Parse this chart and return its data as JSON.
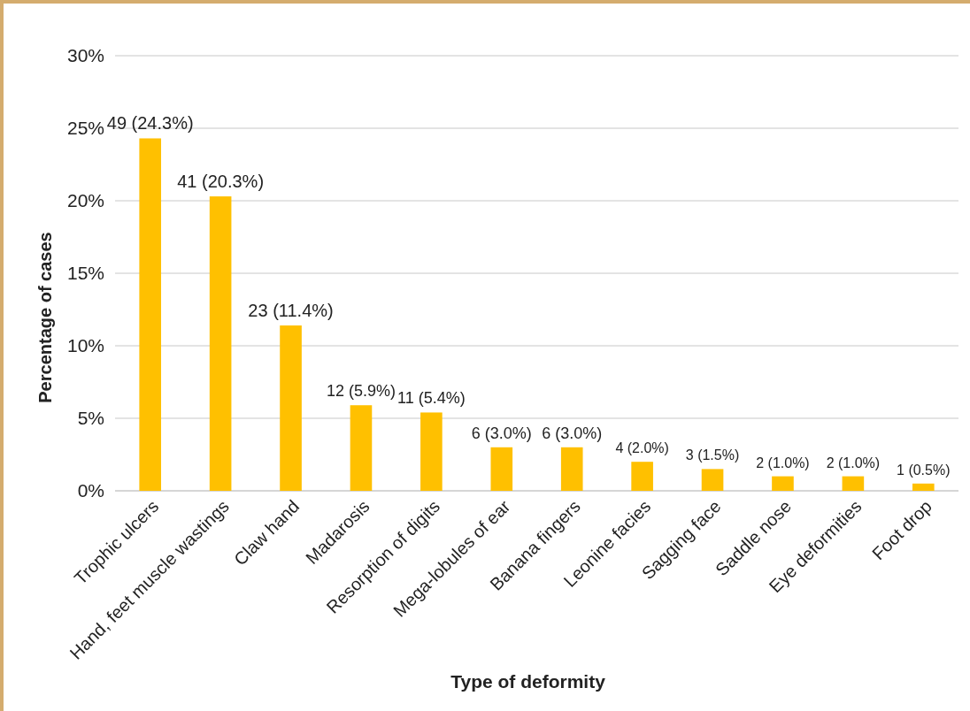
{
  "chart_data": {
    "type": "bar",
    "categories": [
      "Trophic ulcers",
      "Hand, feet muscle wastings",
      "Claw hand",
      "Madarosis",
      "Resorption of digits",
      "Mega-lobules of ear",
      "Banana fingers",
      "Leonine facies",
      "Sagging face",
      "Saddle nose",
      "Eye deformities",
      "Foot drop"
    ],
    "values": [
      24.3,
      20.3,
      11.4,
      5.9,
      5.4,
      3.0,
      3.0,
      2.0,
      1.5,
      1.0,
      1.0,
      0.5
    ],
    "value_labels": [
      "49 (24.3%)",
      "41 (20.3%)",
      "23 (11.4%)",
      "12 (5.9%)",
      "11 (5.4%)",
      "6 (3.0%)",
      "6 (3.0%)",
      "4 (2.0%)",
      "3 (1.5%)",
      "2 (1.0%)",
      "2 (1.0%)",
      "1 (0.5%)"
    ],
    "color": "#ffc000",
    "xlabel": "Type of deformity",
    "ylabel": "Percentage of cases",
    "ylim": [
      0,
      30
    ],
    "yticks": [
      {
        "value": 0,
        "label": "0%"
      },
      {
        "value": 5,
        "label": "5%"
      },
      {
        "value": 10,
        "label": "10%"
      },
      {
        "value": 15,
        "label": "15%"
      },
      {
        "value": 20,
        "label": "20%"
      },
      {
        "value": 25,
        "label": "25%"
      },
      {
        "value": 30,
        "label": "30%"
      }
    ],
    "grid": "y"
  }
}
